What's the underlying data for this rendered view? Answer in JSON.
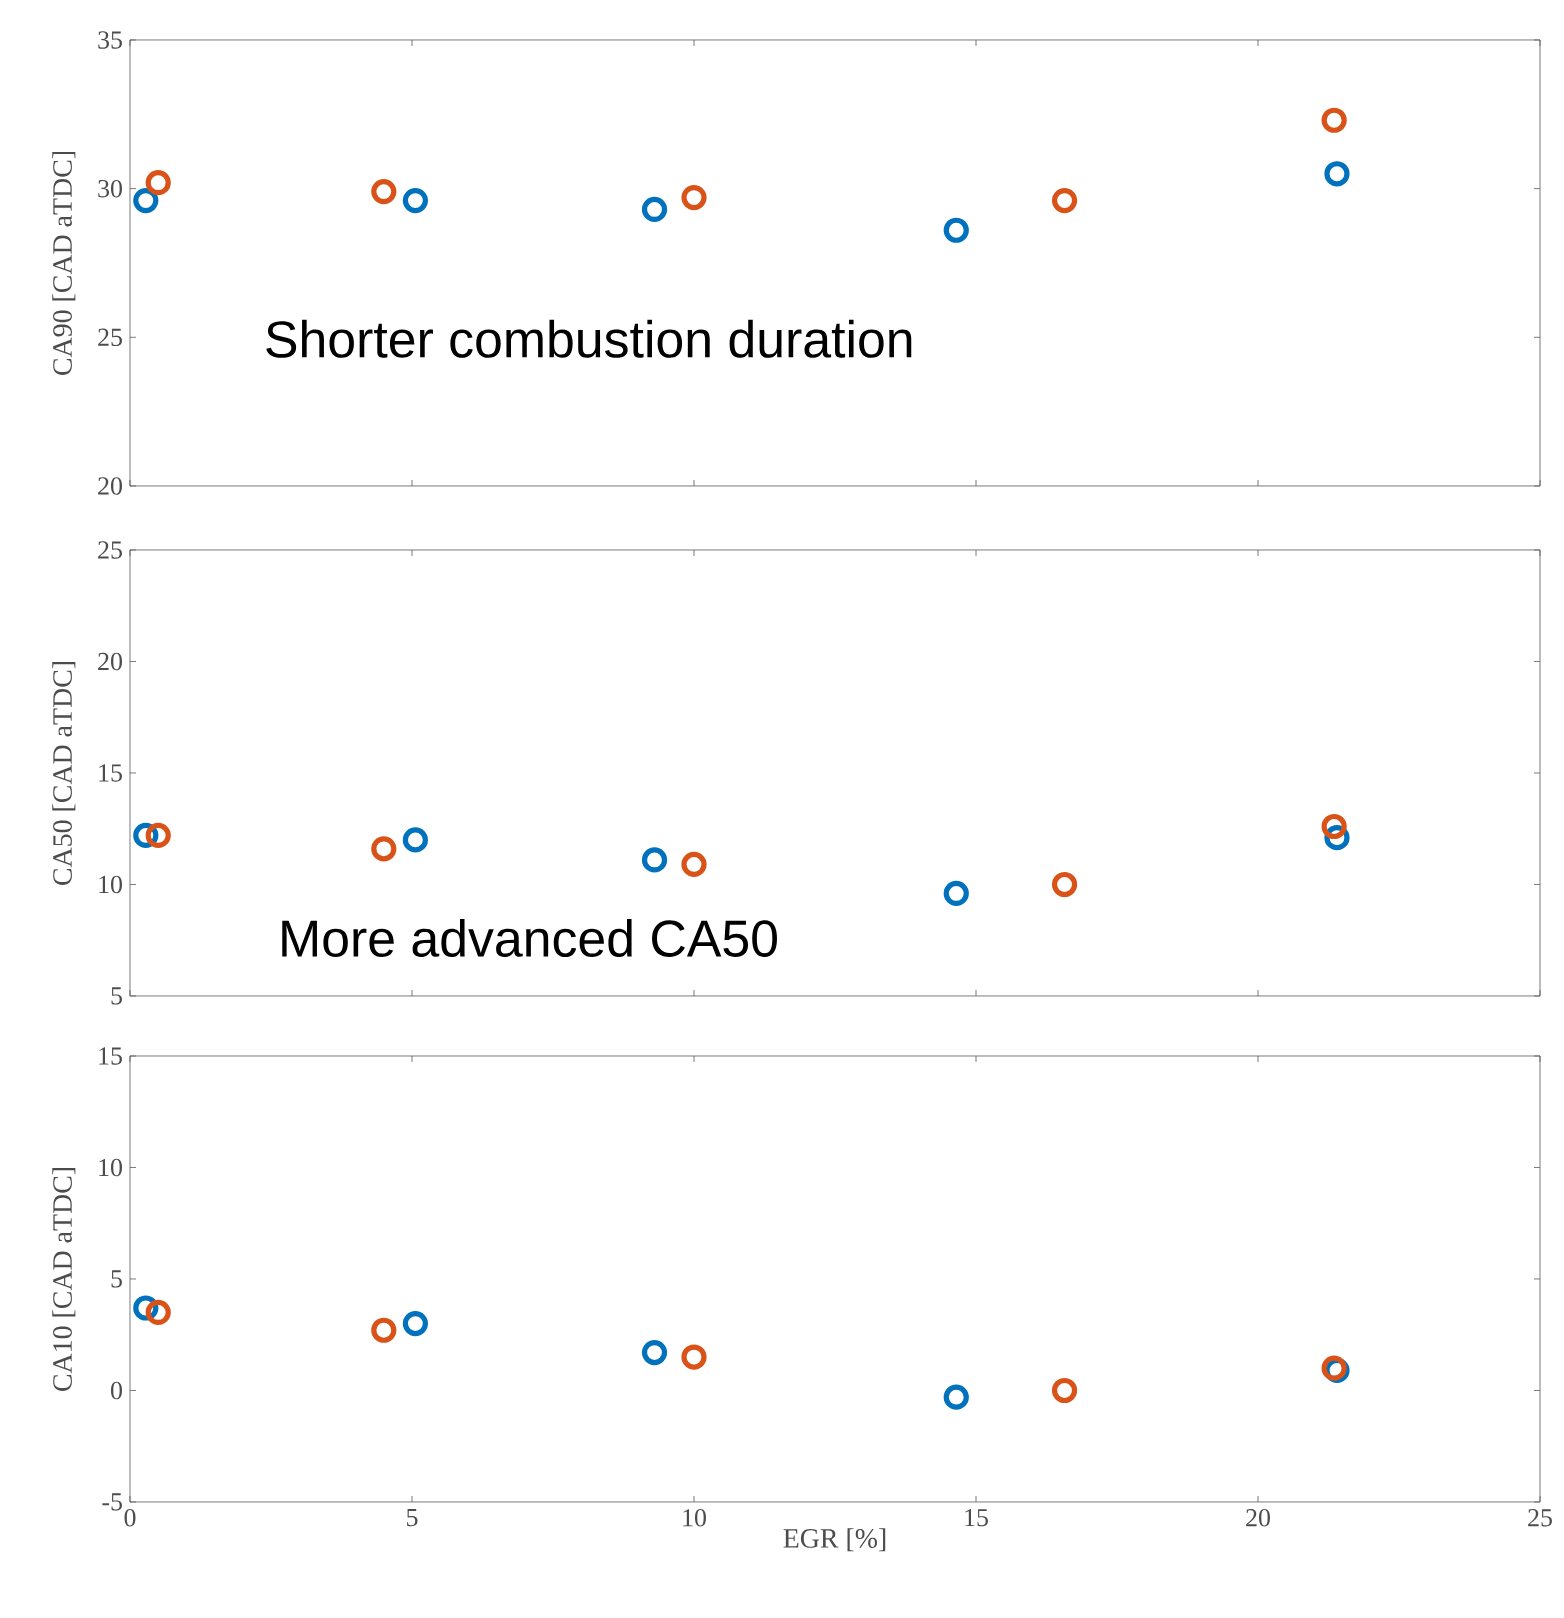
{
  "chart_data": [
    {
      "type": "scatter",
      "ylabel": "CA90 [CAD aTDC]",
      "xlim": [
        0,
        25
      ],
      "xticks": [
        0,
        5,
        10,
        15,
        20,
        25
      ],
      "ylim": [
        20,
        35
      ],
      "yticks": [
        20,
        25,
        30,
        35
      ],
      "tick_labels": "y",
      "marker": "circle",
      "annotations": [
        "Shorter combustion duration"
      ],
      "series": [
        {
          "color": "#0072bd",
          "x": [
            0.28,
            5.06,
            9.3,
            14.65,
            21.4
          ],
          "values": [
            29.6,
            29.6,
            29.3,
            28.6,
            30.5
          ]
        },
        {
          "color": "#d95319",
          "x": [
            0.5,
            4.5,
            10.0,
            16.57,
            21.35
          ],
          "values": [
            30.2,
            29.9,
            29.7,
            29.6,
            32.3
          ]
        }
      ]
    },
    {
      "type": "scatter",
      "ylabel": "CA50 [CAD aTDC]",
      "xlim": [
        0,
        25
      ],
      "xticks": [
        0,
        5,
        10,
        15,
        20,
        25
      ],
      "ylim": [
        5,
        25
      ],
      "yticks": [
        5,
        10,
        15,
        20,
        25
      ],
      "tick_labels": "y",
      "marker": "circle",
      "annotations": [
        "More advanced CA50"
      ],
      "series": [
        {
          "color": "#0072bd",
          "x": [
            0.28,
            5.06,
            9.3,
            14.65,
            21.4
          ],
          "values": [
            12.2,
            12.0,
            11.1,
            9.6,
            12.1
          ]
        },
        {
          "color": "#d95319",
          "x": [
            0.5,
            4.5,
            10.0,
            16.57,
            21.35
          ],
          "values": [
            12.2,
            11.6,
            10.9,
            10.0,
            12.6
          ]
        }
      ]
    },
    {
      "type": "scatter",
      "xlabel": "EGR [%]",
      "ylabel": "CA10 [CAD aTDC]",
      "xlim": [
        0,
        25
      ],
      "xticks": [
        0,
        5,
        10,
        15,
        20,
        25
      ],
      "ylim": [
        -5,
        15
      ],
      "yticks": [
        -5,
        0,
        5,
        10,
        15
      ],
      "marker": "circle",
      "series": [
        {
          "color": "#0072bd",
          "x": [
            0.28,
            5.06,
            9.3,
            14.65,
            21.4
          ],
          "values": [
            3.7,
            3.0,
            1.7,
            -0.3,
            0.9
          ]
        },
        {
          "color": "#d95319",
          "x": [
            0.5,
            4.5,
            10.0,
            16.57,
            21.35
          ],
          "values": [
            3.5,
            2.7,
            1.5,
            0.0,
            1.0
          ]
        }
      ]
    }
  ]
}
